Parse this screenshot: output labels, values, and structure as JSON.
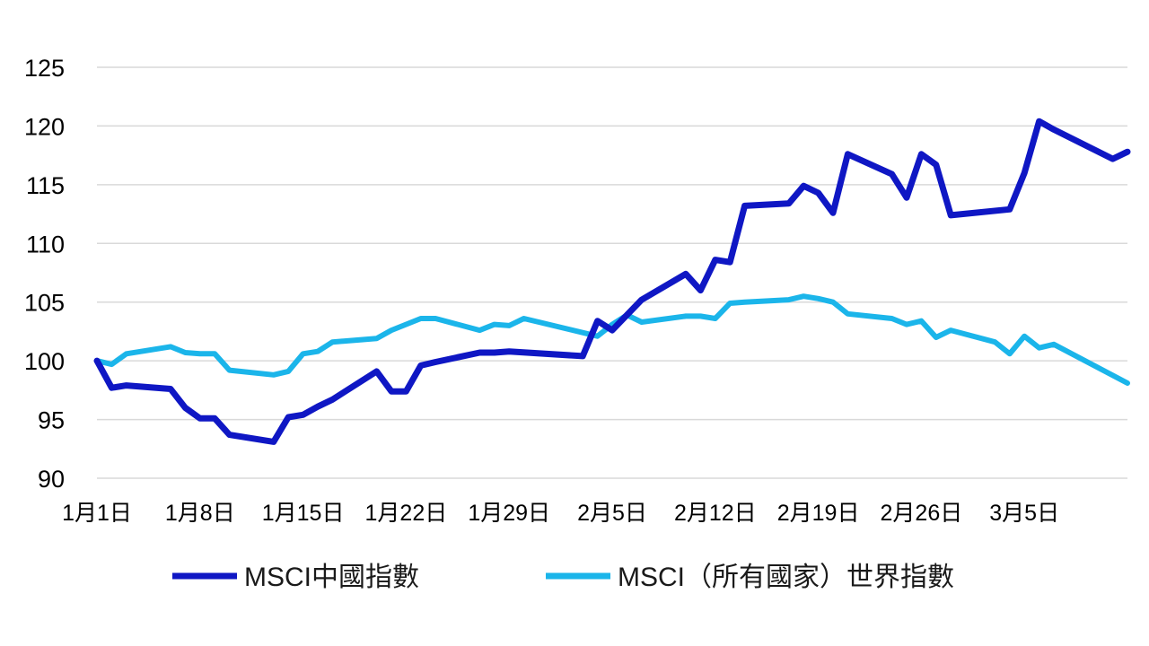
{
  "chart_data": {
    "type": "line",
    "title": "",
    "xlabel": "",
    "ylabel": "",
    "ylim": [
      90,
      125
    ],
    "y_ticks": [
      90,
      95,
      100,
      105,
      110,
      115,
      120,
      125
    ],
    "x_range": [
      "2021-01-01",
      "2021-03-12"
    ],
    "x_ticks": [
      {
        "date": "2021-01-01",
        "label": "1月1日"
      },
      {
        "date": "2021-01-08",
        "label": "1月8日"
      },
      {
        "date": "2021-01-15",
        "label": "1月15日"
      },
      {
        "date": "2021-01-22",
        "label": "1月22日"
      },
      {
        "date": "2021-01-29",
        "label": "1月29日"
      },
      {
        "date": "2021-02-05",
        "label": "2月5日"
      },
      {
        "date": "2021-02-12",
        "label": "2月12日"
      },
      {
        "date": "2021-02-19",
        "label": "2月19日"
      },
      {
        "date": "2021-02-26",
        "label": "2月26日"
      },
      {
        "date": "2021-03-05",
        "label": "3月5日"
      }
    ],
    "grid": true,
    "legend_position": "bottom",
    "series": [
      {
        "name": "MSCI中國指數",
        "color": "#0f17c4",
        "points": [
          [
            "2021-01-01",
            100.0
          ],
          [
            "2021-01-02",
            97.7
          ],
          [
            "2021-01-03",
            97.9
          ],
          [
            "2021-01-06",
            97.6
          ],
          [
            "2021-01-07",
            96.0
          ],
          [
            "2021-01-08",
            95.1
          ],
          [
            "2021-01-09",
            95.1
          ],
          [
            "2021-01-10",
            93.7
          ],
          [
            "2021-01-13",
            93.1
          ],
          [
            "2021-01-14",
            95.2
          ],
          [
            "2021-01-15",
            95.4
          ],
          [
            "2021-01-16",
            96.1
          ],
          [
            "2021-01-17",
            96.7
          ],
          [
            "2021-01-20",
            99.1
          ],
          [
            "2021-01-21",
            97.4
          ],
          [
            "2021-01-22",
            97.4
          ],
          [
            "2021-01-23",
            99.6
          ],
          [
            "2021-01-24",
            99.9
          ],
          [
            "2021-01-27",
            100.7
          ],
          [
            "2021-01-28",
            100.7
          ],
          [
            "2021-01-29",
            100.8
          ],
          [
            "2021-02-03",
            100.4
          ],
          [
            "2021-02-04",
            103.4
          ],
          [
            "2021-02-05",
            102.6
          ],
          [
            "2021-02-07",
            105.2
          ],
          [
            "2021-02-10",
            107.4
          ],
          [
            "2021-02-11",
            106.0
          ],
          [
            "2021-02-12",
            108.6
          ],
          [
            "2021-02-13",
            108.4
          ],
          [
            "2021-02-14",
            113.2
          ],
          [
            "2021-02-17",
            113.4
          ],
          [
            "2021-02-18",
            114.9
          ],
          [
            "2021-02-19",
            114.3
          ],
          [
            "2021-02-20",
            112.6
          ],
          [
            "2021-02-21",
            117.6
          ],
          [
            "2021-02-24",
            115.9
          ],
          [
            "2021-02-25",
            113.9
          ],
          [
            "2021-02-26",
            117.6
          ],
          [
            "2021-02-27",
            116.7
          ],
          [
            "2021-02-28",
            112.4
          ],
          [
            "2021-03-04",
            112.9
          ],
          [
            "2021-03-05",
            116.0
          ],
          [
            "2021-03-06",
            120.4
          ],
          [
            "2021-03-07",
            119.7
          ],
          [
            "2021-03-11",
            117.2
          ],
          [
            "2021-03-12",
            117.8
          ]
        ]
      },
      {
        "name": "MSCI（所有國家）世界指數",
        "color": "#1bb5ea",
        "points": [
          [
            "2021-01-01",
            100.0
          ],
          [
            "2021-01-02",
            99.7
          ],
          [
            "2021-01-03",
            100.6
          ],
          [
            "2021-01-06",
            101.2
          ],
          [
            "2021-01-07",
            100.7
          ],
          [
            "2021-01-08",
            100.6
          ],
          [
            "2021-01-09",
            100.6
          ],
          [
            "2021-01-10",
            99.2
          ],
          [
            "2021-01-13",
            98.8
          ],
          [
            "2021-01-14",
            99.1
          ],
          [
            "2021-01-15",
            100.6
          ],
          [
            "2021-01-16",
            100.8
          ],
          [
            "2021-01-17",
            101.6
          ],
          [
            "2021-01-20",
            101.9
          ],
          [
            "2021-01-21",
            102.6
          ],
          [
            "2021-01-23",
            103.6
          ],
          [
            "2021-01-24",
            103.6
          ],
          [
            "2021-01-27",
            102.6
          ],
          [
            "2021-01-28",
            103.1
          ],
          [
            "2021-01-29",
            103.0
          ],
          [
            "2021-01-30",
            103.6
          ],
          [
            "2021-02-04",
            102.1
          ],
          [
            "2021-02-05",
            103.1
          ],
          [
            "2021-02-06",
            103.9
          ],
          [
            "2021-02-07",
            103.3
          ],
          [
            "2021-02-10",
            103.8
          ],
          [
            "2021-02-11",
            103.8
          ],
          [
            "2021-02-12",
            103.6
          ],
          [
            "2021-02-13",
            104.9
          ],
          [
            "2021-02-14",
            105.0
          ],
          [
            "2021-02-17",
            105.2
          ],
          [
            "2021-02-18",
            105.5
          ],
          [
            "2021-02-19",
            105.3
          ],
          [
            "2021-02-20",
            105.0
          ],
          [
            "2021-02-21",
            104.0
          ],
          [
            "2021-02-24",
            103.6
          ],
          [
            "2021-02-25",
            103.1
          ],
          [
            "2021-02-26",
            103.4
          ],
          [
            "2021-02-27",
            102.0
          ],
          [
            "2021-02-28",
            102.6
          ],
          [
            "2021-03-03",
            101.6
          ],
          [
            "2021-03-04",
            100.6
          ],
          [
            "2021-03-05",
            102.1
          ],
          [
            "2021-03-06",
            101.1
          ],
          [
            "2021-03-07",
            101.4
          ],
          [
            "2021-03-12",
            98.1
          ]
        ]
      }
    ]
  }
}
